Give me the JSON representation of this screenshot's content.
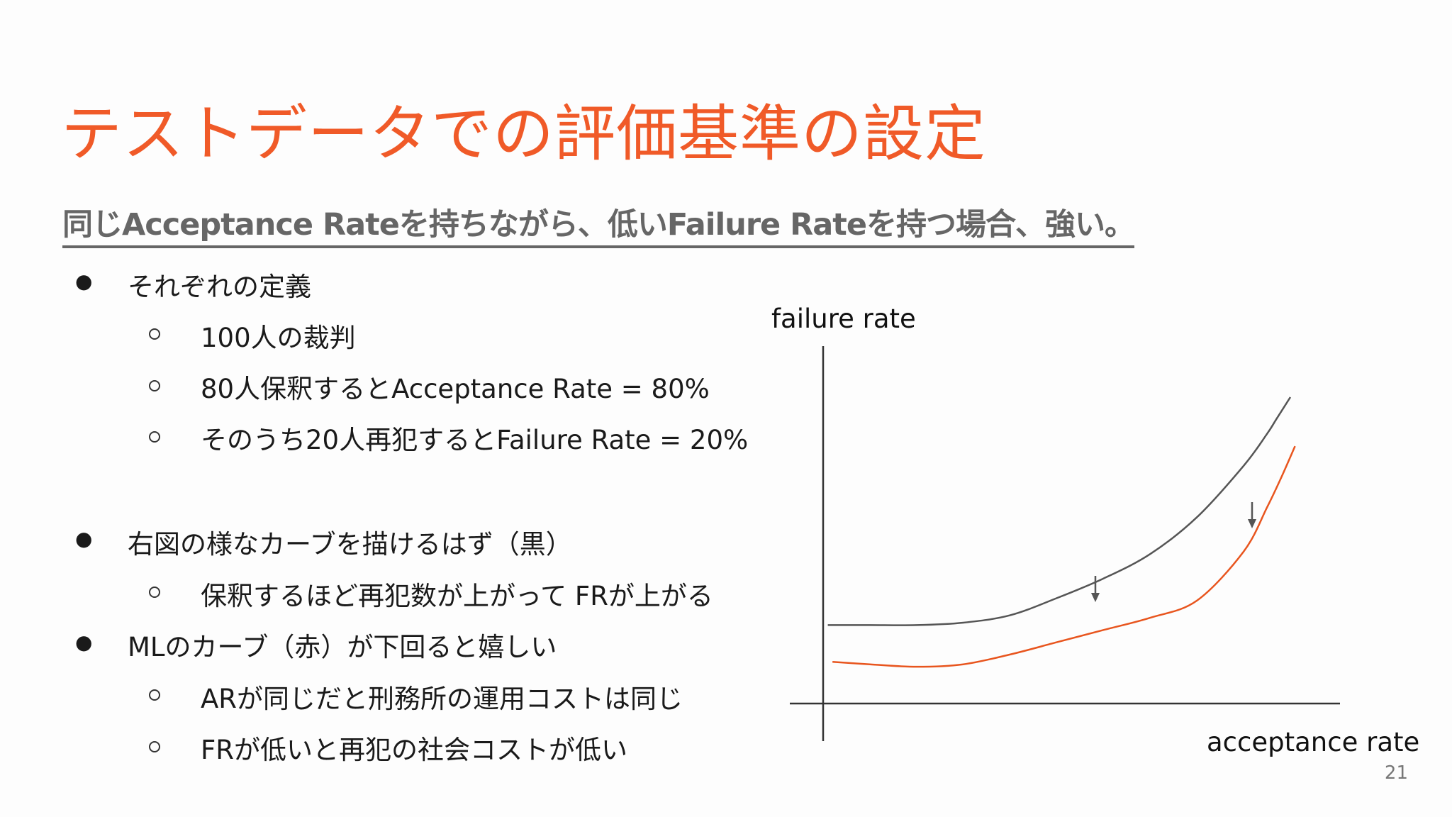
{
  "slide": {
    "title": "テストデータでの評価基準の設定",
    "subtitle": "同じAcceptance Rateを持ちながら、低いFailure Rateを持つ場合、強い。",
    "page_number": "21",
    "colors": {
      "title": "#f05a28",
      "subtitle": "#666666",
      "black_curve": "#555555",
      "red_curve": "#e8551e"
    }
  },
  "bullets": {
    "b1": "それぞれの定義",
    "b1_1": "100人の裁判",
    "b1_2": "80人保釈するとAcceptance Rate = 80%",
    "b1_3": "そのうち20人再犯するとFailure Rate = 20%",
    "b2": "右図の様なカーブを描けるはず（黒）",
    "b2_1": "保釈するほど再犯数が上がって FRが上がる",
    "b3": "MLのカーブ（赤）が下回ると嬉しい",
    "b3_1": "ARが同じだと刑務所の運用コストは同じ",
    "b3_2": "FRが低いと再犯の社会コストが低い"
  },
  "chart_data": {
    "type": "line",
    "ylabel": "failure rate",
    "xlabel": "acceptance rate",
    "grid": false,
    "legend": "none",
    "series": [
      {
        "color": "#555555",
        "x": [
          0.01,
          0.1,
          0.2,
          0.3,
          0.4,
          0.5,
          0.6,
          0.7,
          0.8,
          0.9,
          0.95,
          0.97,
          1.0
        ],
        "y": [
          0.32,
          0.32,
          0.32,
          0.33,
          0.36,
          0.43,
          0.51,
          0.61,
          0.76,
          0.97,
          1.1,
          1.16,
          1.25
        ]
      },
      {
        "color": "#e8551e",
        "x": [
          0.02,
          0.1,
          0.2,
          0.3,
          0.4,
          0.5,
          0.6,
          0.7,
          0.8,
          0.9,
          0.95,
          0.98,
          1.01
        ],
        "y": [
          0.17,
          0.16,
          0.15,
          0.16,
          0.2,
          0.25,
          0.3,
          0.35,
          0.42,
          0.62,
          0.8,
          0.92,
          1.05
        ]
      }
    ],
    "annotations": [
      "down-arrow",
      "down-arrow"
    ]
  }
}
